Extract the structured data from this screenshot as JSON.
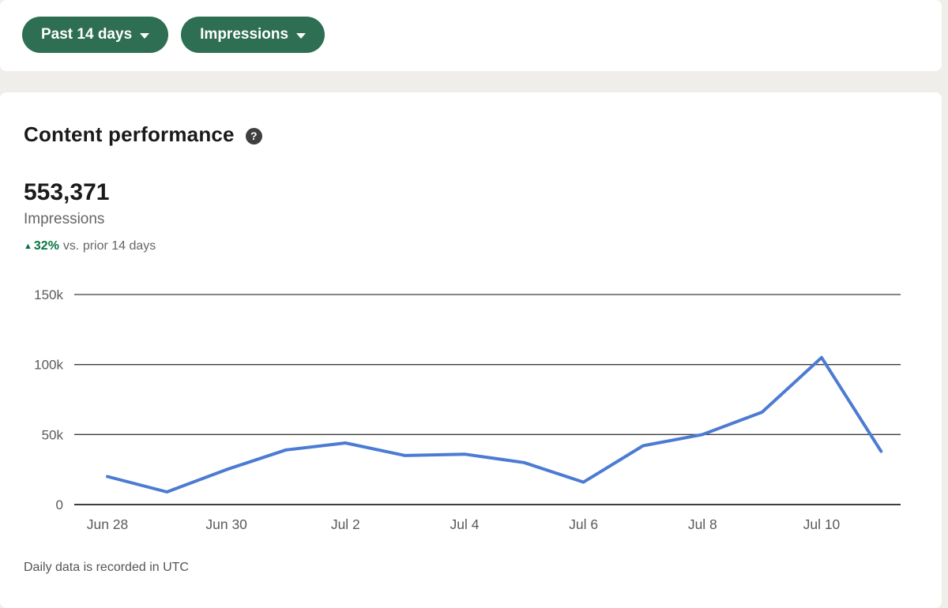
{
  "filters": {
    "date_range_label": "Past 14 days",
    "metric_label": "Impressions"
  },
  "card": {
    "title": "Content performance",
    "metric_value": "553,371",
    "metric_label": "Impressions",
    "trend": {
      "arrow": "▲",
      "percent": "32%",
      "suffix": "vs. prior 14 days"
    },
    "footnote": "Daily data is recorded in UTC"
  },
  "icons": {
    "help": "?",
    "chevron_down": "caret-down",
    "trend_up": "▲"
  },
  "colors": {
    "button_green": "#2e6e52",
    "trend_green": "#057642",
    "line_blue": "#4b7bd2",
    "page_background": "#f0eeeb"
  },
  "chart_data": {
    "type": "line",
    "title": "Content performance",
    "x": [
      "Jun 28",
      "Jun 29",
      "Jun 30",
      "Jul 1",
      "Jul 2",
      "Jul 3",
      "Jul 4",
      "Jul 5",
      "Jul 6",
      "Jul 7",
      "Jul 8",
      "Jul 9",
      "Jul 10",
      "Jul 11"
    ],
    "values": [
      20000,
      9000,
      25000,
      39000,
      44000,
      35000,
      36000,
      30000,
      16000,
      42000,
      50000,
      66000,
      105000,
      38000
    ],
    "series_name": "Impressions",
    "x_tick_labels": [
      "Jun 28",
      "Jun 30",
      "Jul 2",
      "Jul 4",
      "Jul 6",
      "Jul 8",
      "Jul 10"
    ],
    "y_ticks": [
      {
        "value": 0,
        "label": "0"
      },
      {
        "value": 50000,
        "label": "50k"
      },
      {
        "value": 100000,
        "label": "100k"
      },
      {
        "value": 150000,
        "label": "150k"
      }
    ],
    "ylim": [
      0,
      150000
    ],
    "grid": true,
    "legend": false,
    "line_color": "#4b7bd2"
  }
}
